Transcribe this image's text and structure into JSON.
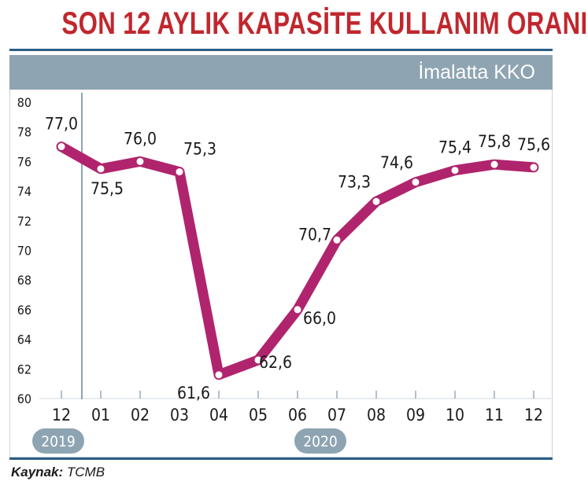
{
  "chart_data": {
    "type": "line",
    "title": "SON 12 AYLIK KAPASİTE KULLANIM ORANI",
    "subtitle": "İmalatta KKO",
    "categories": [
      "12",
      "01",
      "02",
      "03",
      "04",
      "05",
      "06",
      "07",
      "08",
      "09",
      "10",
      "11",
      "12"
    ],
    "series": [
      {
        "values": [
          77.0,
          75.5,
          76.0,
          75.3,
          61.6,
          62.6,
          66.0,
          70.7,
          73.3,
          74.6,
          75.4,
          75.8,
          75.6
        ],
        "labels": [
          "77,0",
          "75,5",
          "76,0",
          "75,3",
          "61,6",
          "62,6",
          "66,0",
          "70,7",
          "73,3",
          "74,6",
          "75,4",
          "75,8",
          "75,6"
        ]
      }
    ],
    "y_ticks": [
      "60",
      "62",
      "64",
      "66",
      "68",
      "70",
      "72",
      "74",
      "76",
      "78",
      "80"
    ],
    "ylim": [
      60,
      80
    ],
    "year_labels": [
      {
        "text": "2019",
        "category_index": 0
      },
      {
        "text": "2020",
        "category_index": 6
      }
    ],
    "line_color": "#b0246e",
    "grid": false
  },
  "source": {
    "label": "Kaynak:",
    "value": "TCMB"
  }
}
